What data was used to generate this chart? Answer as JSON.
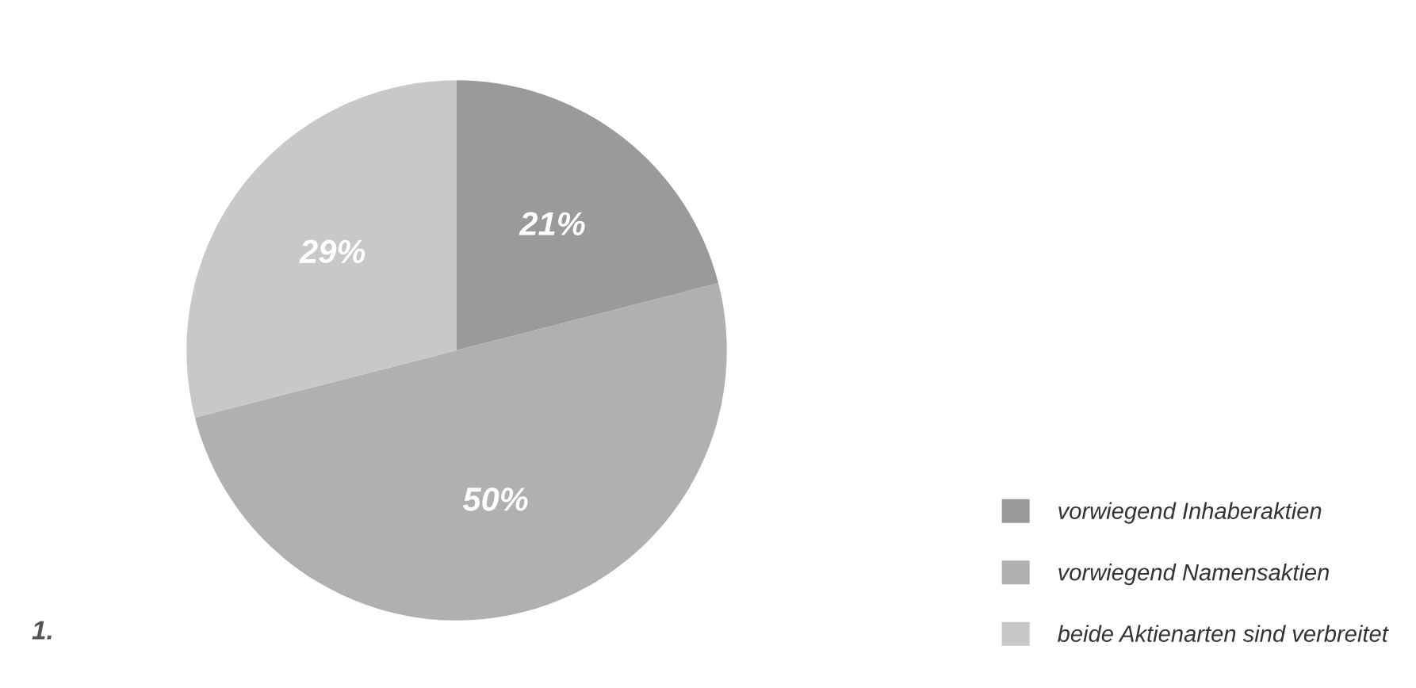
{
  "chart_data": {
    "type": "pie",
    "categories": [
      "vorwiegend Inhaberaktien",
      "vorwiegend Namensaktien",
      "beide Aktienarten sind verbreitet"
    ],
    "values": [
      21,
      50,
      29
    ],
    "colors": [
      "#9a9a9a",
      "#b0b0b0",
      "#c8c8c8"
    ],
    "value_labels": [
      "21%",
      "50%",
      "29%"
    ],
    "legend": "bottom right",
    "annotations": [
      "1."
    ]
  }
}
